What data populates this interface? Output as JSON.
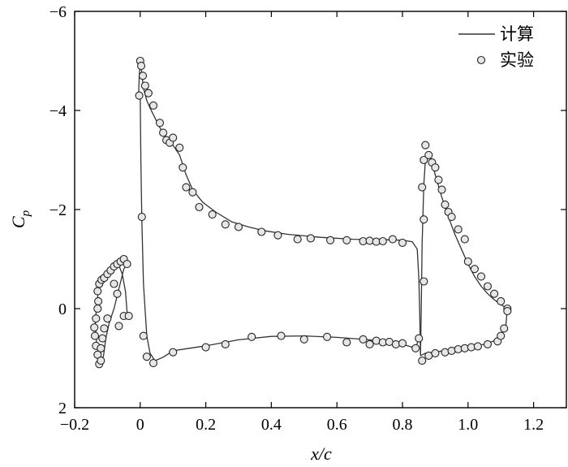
{
  "chart_data": {
    "type": "line",
    "xlabel": "x/c",
    "ylabel_main": "C",
    "ylabel_sub": "p",
    "xlim": [
      -0.2,
      1.3
    ],
    "ylim": [
      2,
      -6
    ],
    "y_inverted": true,
    "grid": false,
    "legend_position": "top-right",
    "x_ticks": [
      -0.2,
      0,
      0.2,
      0.4,
      0.6,
      0.8,
      1.0,
      1.2
    ],
    "x_tick_labels": [
      "−0.2",
      "0",
      "0.2",
      "0.4",
      "0.6",
      "0.8",
      "1.0",
      "1.2"
    ],
    "y_ticks": [
      -6,
      -4,
      -2,
      0,
      2
    ],
    "y_tick_labels": [
      "−6",
      "−4",
      "−2",
      "0",
      "2"
    ],
    "legend": [
      "计算",
      "实验"
    ],
    "series": [
      {
        "name": "计算",
        "kind": "line",
        "segments": [
          [
            [
              -0.039,
              0.15
            ],
            [
              -0.045,
              -0.35
            ],
            [
              -0.055,
              -0.7
            ],
            [
              -0.065,
              -0.87
            ],
            [
              -0.08,
              -0.83
            ],
            [
              -0.1,
              -0.7
            ],
            [
              -0.115,
              -0.6
            ],
            [
              -0.125,
              -0.45
            ],
            [
              -0.133,
              -0.1
            ],
            [
              -0.137,
              0.3
            ],
            [
              -0.133,
              0.7
            ],
            [
              -0.125,
              0.95
            ],
            [
              -0.118,
              1.08
            ],
            [
              -0.112,
              0.95
            ],
            [
              -0.105,
              0.6
            ],
            [
              -0.095,
              0.3
            ],
            [
              -0.08,
              0.0
            ],
            [
              -0.065,
              -0.4
            ],
            [
              -0.05,
              -0.8
            ],
            [
              -0.04,
              -0.9
            ]
          ],
          [
            [
              -0.005,
              -4.3
            ],
            [
              -0.003,
              -4.7
            ],
            [
              0.0,
              -5.0
            ],
            [
              0.004,
              -4.8
            ],
            [
              0.01,
              -4.45
            ],
            [
              0.02,
              -4.2
            ],
            [
              0.03,
              -4.05
            ],
            [
              0.045,
              -3.85
            ],
            [
              0.06,
              -3.65
            ],
            [
              0.075,
              -3.5
            ],
            [
              0.095,
              -3.35
            ],
            [
              0.12,
              -3.1
            ],
            [
              0.14,
              -2.7
            ],
            [
              0.16,
              -2.4
            ],
            [
              0.19,
              -2.15
            ],
            [
              0.23,
              -1.95
            ],
            [
              0.28,
              -1.75
            ],
            [
              0.33,
              -1.65
            ],
            [
              0.38,
              -1.57
            ],
            [
              0.45,
              -1.5
            ],
            [
              0.55,
              -1.44
            ],
            [
              0.65,
              -1.4
            ],
            [
              0.75,
              -1.39
            ],
            [
              0.8,
              -1.38
            ],
            [
              0.83,
              -1.35
            ],
            [
              0.845,
              -1.2
            ],
            [
              0.85,
              -0.6
            ],
            [
              0.853,
              0.2
            ],
            [
              0.855,
              0.95
            ]
          ],
          [
            [
              0.0,
              -4.3
            ],
            [
              0.002,
              -3.0
            ],
            [
              0.005,
              -1.8
            ],
            [
              0.01,
              -0.5
            ],
            [
              0.02,
              0.55
            ],
            [
              0.03,
              0.9
            ],
            [
              0.045,
              1.05
            ],
            [
              0.07,
              0.98
            ],
            [
              0.1,
              0.85
            ],
            [
              0.15,
              0.8
            ],
            [
              0.2,
              0.75
            ],
            [
              0.3,
              0.63
            ],
            [
              0.4,
              0.56
            ],
            [
              0.5,
              0.55
            ],
            [
              0.6,
              0.58
            ],
            [
              0.7,
              0.63
            ],
            [
              0.8,
              0.72
            ],
            [
              0.84,
              0.8
            ],
            [
              0.85,
              0.6
            ]
          ],
          [
            [
              0.855,
              0.95
            ],
            [
              0.857,
              0.2
            ],
            [
              0.86,
              -1.3
            ],
            [
              0.865,
              -2.5
            ],
            [
              0.87,
              -3.0
            ],
            [
              0.875,
              -3.15
            ],
            [
              0.885,
              -3.05
            ],
            [
              0.9,
              -2.7
            ],
            [
              0.92,
              -2.25
            ],
            [
              0.94,
              -1.85
            ],
            [
              0.96,
              -1.5
            ],
            [
              0.98,
              -1.2
            ],
            [
              1.0,
              -0.9
            ],
            [
              1.02,
              -0.65
            ],
            [
              1.04,
              -0.45
            ],
            [
              1.06,
              -0.3
            ],
            [
              1.08,
              -0.18
            ],
            [
              1.1,
              -0.08
            ],
            [
              1.12,
              0.0
            ]
          ],
          [
            [
              0.855,
              0.95
            ],
            [
              0.87,
              0.9
            ],
            [
              0.9,
              0.88
            ],
            [
              0.95,
              0.82
            ],
            [
              1.0,
              0.78
            ],
            [
              1.05,
              0.72
            ],
            [
              1.08,
              0.65
            ],
            [
              1.1,
              0.55
            ],
            [
              1.115,
              0.35
            ],
            [
              1.12,
              0.0
            ]
          ]
        ]
      },
      {
        "name": "实验",
        "kind": "scatter",
        "points": [
          [
            -0.125,
            1.12
          ],
          [
            -0.13,
            0.93
          ],
          [
            -0.135,
            0.75
          ],
          [
            -0.138,
            0.55
          ],
          [
            -0.14,
            0.38
          ],
          [
            -0.135,
            0.2
          ],
          [
            -0.13,
            0.0
          ],
          [
            -0.128,
            -0.15
          ],
          [
            -0.13,
            -0.35
          ],
          [
            -0.125,
            -0.5
          ],
          [
            -0.118,
            -0.58
          ],
          [
            -0.11,
            -0.62
          ],
          [
            -0.1,
            -0.7
          ],
          [
            -0.09,
            -0.77
          ],
          [
            -0.08,
            -0.85
          ],
          [
            -0.07,
            -0.9
          ],
          [
            -0.06,
            -0.95
          ],
          [
            -0.05,
            -1.0
          ],
          [
            -0.04,
            -0.9
          ],
          [
            -0.1,
            0.2
          ],
          [
            -0.11,
            0.4
          ],
          [
            -0.115,
            0.6
          ],
          [
            -0.12,
            0.8
          ],
          [
            -0.08,
            -0.5
          ],
          [
            -0.07,
            -0.3
          ],
          [
            -0.065,
            0.35
          ],
          [
            -0.05,
            0.15
          ],
          [
            -0.035,
            0.15
          ],
          [
            -0.12,
            1.05
          ],
          [
            -0.003,
            -4.3
          ],
          [
            0.0,
            -5.0
          ],
          [
            0.003,
            -4.9
          ],
          [
            0.008,
            -4.7
          ],
          [
            0.015,
            -4.5
          ],
          [
            0.025,
            -4.35
          ],
          [
            0.04,
            -4.1
          ],
          [
            0.06,
            -3.75
          ],
          [
            0.07,
            -3.55
          ],
          [
            0.08,
            -3.4
          ],
          [
            0.09,
            -3.35
          ],
          [
            0.1,
            -3.45
          ],
          [
            0.12,
            -3.25
          ],
          [
            0.13,
            -2.85
          ],
          [
            0.14,
            -2.45
          ],
          [
            0.16,
            -2.35
          ],
          [
            0.18,
            -2.05
          ],
          [
            0.22,
            -1.9
          ],
          [
            0.26,
            -1.7
          ],
          [
            0.3,
            -1.65
          ],
          [
            0.37,
            -1.55
          ],
          [
            0.42,
            -1.48
          ],
          [
            0.48,
            -1.4
          ],
          [
            0.52,
            -1.42
          ],
          [
            0.58,
            -1.38
          ],
          [
            0.63,
            -1.38
          ],
          [
            0.68,
            -1.36
          ],
          [
            0.7,
            -1.37
          ],
          [
            0.72,
            -1.35
          ],
          [
            0.74,
            -1.36
          ],
          [
            0.77,
            -1.4
          ],
          [
            0.8,
            -1.33
          ],
          [
            0.005,
            -1.85
          ],
          [
            0.01,
            0.55
          ],
          [
            0.02,
            0.97
          ],
          [
            0.04,
            1.1
          ],
          [
            0.1,
            0.88
          ],
          [
            0.2,
            0.78
          ],
          [
            0.26,
            0.72
          ],
          [
            0.34,
            0.57
          ],
          [
            0.43,
            0.55
          ],
          [
            0.5,
            0.62
          ],
          [
            0.57,
            0.57
          ],
          [
            0.63,
            0.68
          ],
          [
            0.68,
            0.62
          ],
          [
            0.7,
            0.72
          ],
          [
            0.72,
            0.65
          ],
          [
            0.74,
            0.68
          ],
          [
            0.76,
            0.67
          ],
          [
            0.78,
            0.72
          ],
          [
            0.8,
            0.7
          ],
          [
            0.84,
            0.8
          ],
          [
            0.85,
            0.6
          ],
          [
            0.86,
            1.05
          ],
          [
            0.865,
            -0.55
          ],
          [
            0.865,
            -1.8
          ],
          [
            0.86,
            -2.45
          ],
          [
            0.865,
            -3.0
          ],
          [
            0.87,
            -3.3
          ],
          [
            0.88,
            -3.1
          ],
          [
            0.89,
            -2.95
          ],
          [
            0.9,
            -2.85
          ],
          [
            0.91,
            -2.6
          ],
          [
            0.92,
            -2.4
          ],
          [
            0.93,
            -2.1
          ],
          [
            0.94,
            -1.95
          ],
          [
            0.95,
            -1.85
          ],
          [
            0.97,
            -1.6
          ],
          [
            0.99,
            -1.4
          ],
          [
            1.0,
            -0.95
          ],
          [
            1.02,
            -0.8
          ],
          [
            1.04,
            -0.65
          ],
          [
            1.06,
            -0.45
          ],
          [
            1.08,
            -0.3
          ],
          [
            1.1,
            -0.15
          ],
          [
            1.12,
            0.0
          ],
          [
            1.12,
            0.05
          ],
          [
            0.88,
            0.95
          ],
          [
            0.9,
            0.9
          ],
          [
            0.93,
            0.88
          ],
          [
            0.95,
            0.85
          ],
          [
            0.97,
            0.82
          ],
          [
            0.99,
            0.8
          ],
          [
            1.01,
            0.78
          ],
          [
            1.03,
            0.76
          ],
          [
            1.06,
            0.72
          ],
          [
            1.09,
            0.66
          ],
          [
            1.1,
            0.55
          ],
          [
            1.11,
            0.4
          ]
        ]
      }
    ]
  }
}
